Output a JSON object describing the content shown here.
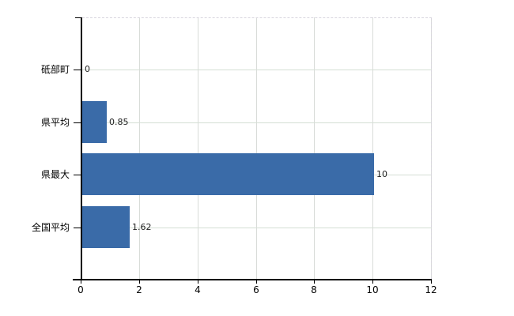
{
  "chart_data": {
    "type": "bar",
    "orientation": "horizontal",
    "title": "",
    "categories": [
      "砥部町",
      "県平均",
      "県最大",
      "全国平均"
    ],
    "values": [
      0,
      0.85,
      10,
      1.62
    ],
    "value_labels": [
      "0",
      "0.85",
      "10",
      "1.62"
    ],
    "xlim": [
      0,
      12
    ],
    "xticks": [
      0,
      2,
      4,
      6,
      8,
      10,
      12
    ],
    "xtick_labels": [
      "0",
      "2",
      "4",
      "6",
      "8",
      "10",
      "12"
    ],
    "grid": "on",
    "legend": "none"
  },
  "colors": {
    "bar": "#3a6ba8",
    "axis": "#000000",
    "vertical_gridline": "#d8dcd8",
    "horizontal_gridline": "#d4ded4",
    "dashed_border": "#d8d5de",
    "background": "#ffffff",
    "tick_label": "#000000",
    "value_label": "#222222"
  }
}
